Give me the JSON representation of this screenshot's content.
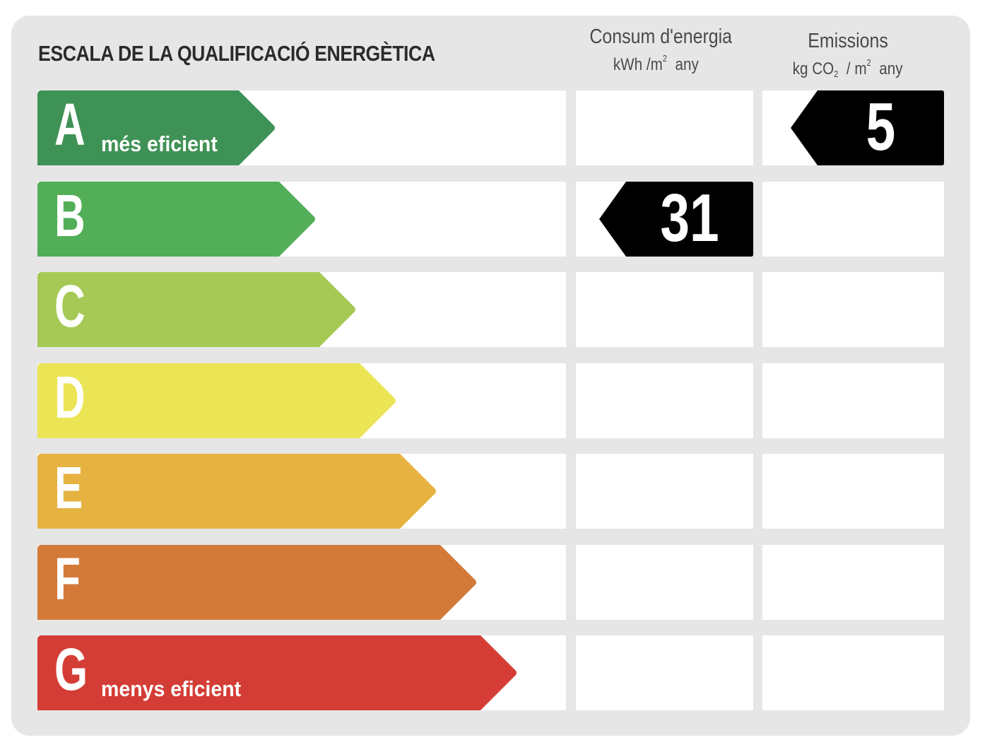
{
  "title": "ESCALA DE LA QUALIFICACIÓ ENERGÈTICA",
  "columns": {
    "energy": {
      "label": "Consum d'energia",
      "unit_main": "kWh /m",
      "unit_sup": "2",
      "unit_after": "any"
    },
    "emissions": {
      "label": "Emissions",
      "unit_prefix": "kg CO",
      "unit_sub": "2",
      "unit_mid": "/ m",
      "unit_sup": "2",
      "unit_after": "any"
    }
  },
  "ratings": [
    {
      "letter": "A",
      "label": "més eficient",
      "color": "#3f9255"
    },
    {
      "letter": "B",
      "label": "",
      "color": "#52ae57"
    },
    {
      "letter": "C",
      "label": "",
      "color": "#a6c955"
    },
    {
      "letter": "D",
      "label": "",
      "color": "#ebe454"
    },
    {
      "letter": "E",
      "label": "",
      "color": "#e6b342"
    },
    {
      "letter": "F",
      "label": "",
      "color": "#d47a39"
    },
    {
      "letter": "G",
      "label": "menys eficient",
      "color": "#d43d35"
    }
  ],
  "energy_rating": {
    "value": "31",
    "letter": "B"
  },
  "emissions_rating": {
    "value": "5",
    "letter": "A"
  }
}
